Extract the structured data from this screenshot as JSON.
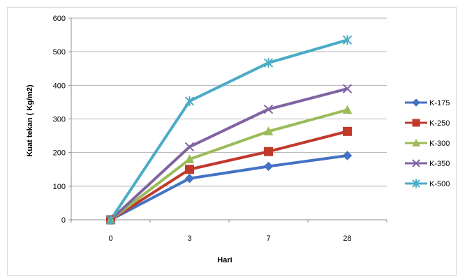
{
  "chart_data": {
    "type": "line",
    "title": "",
    "xlabel": "Hari",
    "ylabel": "Kuat tekan ( Kg/m2)",
    "categories": [
      "0",
      "3",
      "7",
      "28"
    ],
    "ylim": [
      0,
      600
    ],
    "yticks": [
      "0",
      "100",
      "200",
      "300",
      "400",
      "500",
      "600"
    ],
    "grid": true,
    "legend_position": "right",
    "series": [
      {
        "name": "K-175",
        "color": "#4472C4",
        "marker": "diamond",
        "values": [
          0,
          123,
          159,
          191
        ]
      },
      {
        "name": "K-250",
        "color": "#C0392B",
        "marker": "square",
        "values": [
          0,
          150,
          203,
          263
        ]
      },
      {
        "name": "K-300",
        "color": "#9BBB59",
        "marker": "triangle",
        "values": [
          0,
          180,
          263,
          327
        ]
      },
      {
        "name": "K-350",
        "color": "#8064A2",
        "marker": "x",
        "values": [
          0,
          217,
          329,
          390
        ]
      },
      {
        "name": "K-500",
        "color": "#4BACC6",
        "marker": "star",
        "values": [
          0,
          353,
          467,
          535
        ]
      }
    ]
  }
}
